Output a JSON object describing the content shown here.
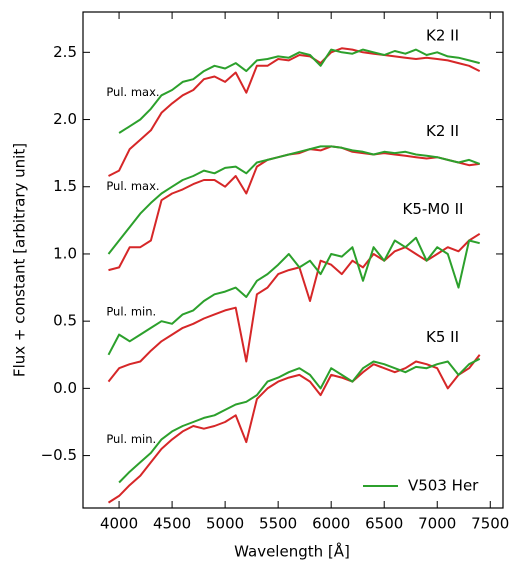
{
  "chart_data": {
    "type": "line",
    "xlabel": "Wavelength [Å]",
    "ylabel": "Flux + constant [arbitrary unit]",
    "x": [
      3900,
      4000,
      4100,
      4200,
      4300,
      4400,
      4500,
      4600,
      4700,
      4800,
      4900,
      5000,
      5100,
      5200,
      5300,
      5400,
      5500,
      5600,
      5700,
      5800,
      5900,
      6000,
      6100,
      6200,
      6300,
      6400,
      6500,
      6600,
      6700,
      6800,
      6900,
      7000,
      7100,
      7200,
      7300,
      7400
    ],
    "xlim": [
      3660,
      7620
    ],
    "xticks": [
      4000,
      4500,
      5000,
      5500,
      6000,
      6500,
      7000,
      7500
    ],
    "ylim": [
      -0.89,
      2.8
    ],
    "yticks": [
      {
        "value": -0.5,
        "label": "−0.5"
      },
      {
        "value": 0,
        "label": "0.0"
      },
      0.5,
      {
        "value": 1,
        "label": "1.0"
      },
      1.5,
      {
        "value": 2,
        "label": "2.0"
      },
      2.5
    ],
    "legend": "lower right",
    "series": [
      {
        "color": "#d62728",
        "values": [
          1.58,
          1.62,
          1.78,
          1.85,
          1.92,
          2.05,
          2.12,
          2.18,
          2.22,
          2.3,
          2.32,
          2.28,
          2.35,
          2.2,
          2.4,
          2.4,
          2.45,
          2.44,
          2.48,
          2.47,
          2.42,
          2.5,
          2.53,
          2.52,
          2.5,
          2.49,
          2.48,
          2.47,
          2.46,
          2.45,
          2.46,
          2.45,
          2.44,
          2.42,
          2.4,
          2.36
        ]
      },
      {
        "color": "#d62728",
        "values": [
          0.88,
          0.9,
          1.05,
          1.05,
          1.1,
          1.4,
          1.45,
          1.48,
          1.52,
          1.55,
          1.55,
          1.5,
          1.58,
          1.45,
          1.65,
          1.7,
          1.72,
          1.74,
          1.75,
          1.78,
          1.77,
          1.8,
          1.79,
          1.76,
          1.75,
          1.74,
          1.75,
          1.74,
          1.73,
          1.72,
          1.71,
          1.72,
          1.7,
          1.68,
          1.66,
          1.67
        ]
      },
      {
        "color": "#d62728",
        "values": [
          0.05,
          0.15,
          0.18,
          0.2,
          0.28,
          0.35,
          0.4,
          0.45,
          0.48,
          0.52,
          0.55,
          0.58,
          0.6,
          0.2,
          0.7,
          0.75,
          0.85,
          0.88,
          0.9,
          0.65,
          0.95,
          0.92,
          0.85,
          0.95,
          0.9,
          1.0,
          0.95,
          1.02,
          1.05,
          1.0,
          0.95,
          1.0,
          1.05,
          1.02,
          1.1,
          1.15
        ]
      },
      {
        "color": "#d62728",
        "values": [
          -0.85,
          -0.8,
          -0.72,
          -0.65,
          -0.55,
          -0.45,
          -0.38,
          -0.32,
          -0.28,
          -0.3,
          -0.28,
          -0.25,
          -0.2,
          -0.4,
          -0.08,
          0.0,
          0.05,
          0.08,
          0.1,
          0.05,
          -0.05,
          0.1,
          0.08,
          0.05,
          0.12,
          0.18,
          0.15,
          0.12,
          0.15,
          0.2,
          0.18,
          0.15,
          0.0,
          0.1,
          0.15,
          0.25
        ]
      },
      {
        "name": "V503 Her",
        "color": "#2ca02c",
        "values": [
          null,
          1.9,
          1.95,
          2.0,
          2.08,
          2.18,
          2.22,
          2.28,
          2.3,
          2.36,
          2.4,
          2.38,
          2.42,
          2.36,
          2.44,
          2.45,
          2.47,
          2.46,
          2.5,
          2.48,
          2.4,
          2.52,
          2.5,
          2.49,
          2.52,
          2.5,
          2.48,
          2.51,
          2.49,
          2.52,
          2.48,
          2.5,
          2.47,
          2.46,
          2.44,
          2.42
        ]
      },
      {
        "color": "#2ca02c",
        "values": [
          1.0,
          1.1,
          1.2,
          1.3,
          1.38,
          1.45,
          1.5,
          1.55,
          1.58,
          1.62,
          1.6,
          1.64,
          1.65,
          1.6,
          1.68,
          1.7,
          1.72,
          1.74,
          1.76,
          1.78,
          1.8,
          1.8,
          1.79,
          1.77,
          1.76,
          1.74,
          1.76,
          1.75,
          1.76,
          1.74,
          1.73,
          1.72,
          1.7,
          1.68,
          1.7,
          1.67
        ]
      },
      {
        "color": "#2ca02c",
        "values": [
          0.25,
          0.4,
          0.35,
          0.4,
          0.45,
          0.5,
          0.48,
          0.55,
          0.58,
          0.65,
          0.7,
          0.72,
          0.75,
          0.68,
          0.8,
          0.85,
          0.92,
          1.0,
          0.9,
          0.95,
          0.85,
          1.0,
          0.98,
          1.05,
          0.8,
          1.05,
          0.95,
          1.1,
          1.05,
          1.12,
          0.95,
          1.05,
          1.0,
          0.75,
          1.1,
          1.08
        ]
      },
      {
        "color": "#2ca02c",
        "values": [
          null,
          -0.7,
          -0.62,
          -0.55,
          -0.48,
          -0.38,
          -0.32,
          -0.28,
          -0.25,
          -0.22,
          -0.2,
          -0.16,
          -0.12,
          -0.1,
          -0.05,
          0.05,
          0.08,
          0.12,
          0.15,
          0.1,
          0.0,
          0.15,
          0.1,
          0.05,
          0.15,
          0.2,
          0.18,
          0.15,
          0.12,
          0.16,
          0.15,
          0.18,
          0.2,
          0.1,
          0.18,
          0.22
        ]
      }
    ],
    "annotations": [
      {
        "text": "K2 II",
        "x": 7050,
        "y": 2.62,
        "color": "#d62728"
      },
      {
        "text": "K2 II",
        "x": 7050,
        "y": 1.91,
        "color": "#d62728"
      },
      {
        "text": "K5-M0 II",
        "x": 6960,
        "y": 1.33,
        "color": "#d62728"
      },
      {
        "text": "K5 II",
        "x": 7050,
        "y": 0.38,
        "color": "#d62728"
      },
      {
        "text": "Pul. max.",
        "x": 3880,
        "y": 2.2,
        "color": "#000000"
      },
      {
        "text": "Pul. max.",
        "x": 3880,
        "y": 1.5,
        "color": "#000000"
      },
      {
        "text": "Pul. min.",
        "x": 3880,
        "y": 0.57,
        "color": "#000000"
      },
      {
        "text": "Pul. min.",
        "x": 3880,
        "y": -0.38,
        "color": "#000000"
      }
    ]
  }
}
